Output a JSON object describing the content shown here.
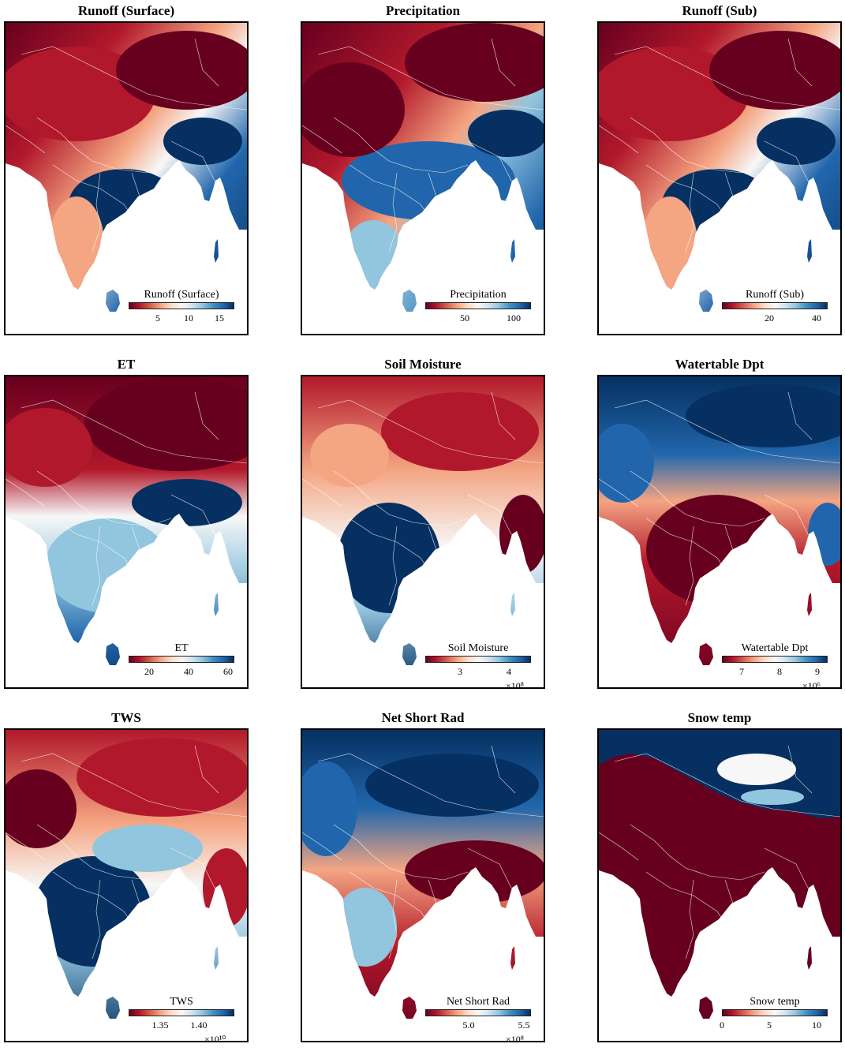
{
  "panels": [
    {
      "title": "Runoff (Surface)",
      "cb_label": "Runoff (Surface)",
      "ticks": [
        "5",
        "10",
        "15"
      ],
      "exp": "",
      "scheme": "surface"
    },
    {
      "title": "Precipitation",
      "cb_label": "Precipitation",
      "ticks": [
        "50",
        "100"
      ],
      "exp": "",
      "scheme": "precip"
    },
    {
      "title": "Runoff (Sub)",
      "cb_label": "Runoff (Sub)",
      "ticks": [
        "20",
        "40"
      ],
      "exp": "",
      "scheme": "surface"
    },
    {
      "title": "ET",
      "cb_label": "ET",
      "ticks": [
        "20",
        "40",
        "60"
      ],
      "exp": "",
      "scheme": "et"
    },
    {
      "title": "Soil Moisture",
      "cb_label": "Soil Moisture",
      "ticks": [
        "3",
        "4"
      ],
      "exp": "×10⁸",
      "scheme": "soil"
    },
    {
      "title": "Watertable Dpt",
      "cb_label": "Watertable Dpt",
      "ticks": [
        "7",
        "8",
        "9"
      ],
      "exp": "×10⁶",
      "scheme": "water"
    },
    {
      "title": "TWS",
      "cb_label": "TWS",
      "ticks": [
        "1.35",
        "1.40"
      ],
      "exp": "×10¹⁰",
      "scheme": "tws"
    },
    {
      "title": "Net Short Rad",
      "cb_label": "Net Short Rad",
      "ticks": [
        "5.0",
        "5.5"
      ],
      "exp": "×10⁸",
      "scheme": "rad"
    },
    {
      "title": "Snow temp",
      "cb_label": "Snow temp",
      "ticks": [
        "0",
        "5",
        "10"
      ],
      "exp": "",
      "scheme": "snow"
    }
  ],
  "colors": {
    "dark_red": "#67001f",
    "red": "#b2182b",
    "light_red": "#f4a582",
    "white": "#f7f7f7",
    "light_blue": "#92c5de",
    "blue": "#2166ac",
    "dark_blue": "#053061"
  }
}
